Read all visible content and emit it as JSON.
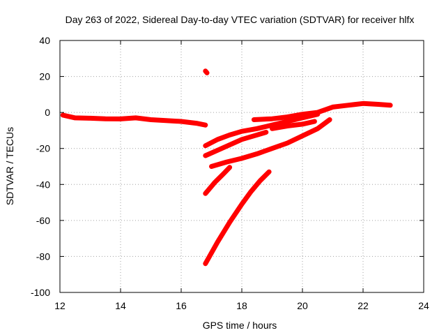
{
  "chart_data": {
    "type": "line",
    "title": "Day 263 of 2022, Sidereal Day-to-day VTEC variation (SDTVAR) for receiver hlfx",
    "xlabel": "GPS time / hours",
    "ylabel": "SDTVAR / TECUs",
    "xlim": [
      12,
      24
    ],
    "ylim": [
      -100,
      40
    ],
    "xticks": [
      12,
      14,
      16,
      18,
      20,
      22,
      24
    ],
    "yticks": [
      -100,
      -80,
      -60,
      -40,
      -20,
      0,
      20,
      40
    ],
    "grid": true,
    "color": "#ff0000",
    "series": [
      {
        "points": [
          [
            12.1,
            -1.5
          ],
          [
            12.5,
            -3
          ],
          [
            13.0,
            -3.2
          ],
          [
            13.5,
            -3.5
          ],
          [
            14.0,
            -3.6
          ],
          [
            14.5,
            -3
          ],
          [
            15.0,
            -4
          ],
          [
            15.5,
            -4.5
          ],
          [
            16.0,
            -5
          ],
          [
            16.5,
            -6
          ],
          [
            16.8,
            -7
          ]
        ]
      },
      {
        "points": [
          [
            16.8,
            23
          ],
          [
            16.85,
            22
          ]
        ]
      },
      {
        "points": [
          [
            16.8,
            -18.5
          ],
          [
            17.2,
            -15
          ],
          [
            17.6,
            -12.5
          ],
          [
            18.0,
            -10.5
          ],
          [
            18.5,
            -9
          ],
          [
            19.0,
            -7
          ],
          [
            19.5,
            -5
          ],
          [
            20.0,
            -3
          ],
          [
            20.5,
            -1
          ]
        ]
      },
      {
        "points": [
          [
            16.8,
            -24
          ],
          [
            17.2,
            -21
          ],
          [
            17.6,
            -18
          ],
          [
            18.0,
            -15
          ],
          [
            18.4,
            -13
          ],
          [
            18.8,
            -11
          ]
        ]
      },
      {
        "points": [
          [
            18.4,
            -4
          ],
          [
            19.0,
            -3.5
          ],
          [
            19.5,
            -2.5
          ],
          [
            20.0,
            -1
          ],
          [
            20.5,
            0
          ],
          [
            21.0,
            3
          ],
          [
            21.5,
            4
          ],
          [
            22.0,
            5
          ],
          [
            22.5,
            4.5
          ],
          [
            22.9,
            4
          ]
        ]
      },
      {
        "points": [
          [
            17.0,
            -30
          ],
          [
            17.5,
            -27.5
          ],
          [
            18.0,
            -25.5
          ],
          [
            18.5,
            -23
          ],
          [
            19.0,
            -20
          ],
          [
            19.5,
            -17
          ],
          [
            20.0,
            -13
          ],
          [
            20.5,
            -9
          ],
          [
            20.9,
            -4
          ]
        ]
      },
      {
        "points": [
          [
            19.0,
            -9
          ],
          [
            19.5,
            -7.5
          ],
          [
            20.0,
            -6.5
          ],
          [
            20.4,
            -5
          ]
        ]
      },
      {
        "points": [
          [
            16.8,
            -45
          ],
          [
            17.1,
            -39
          ],
          [
            17.4,
            -34
          ],
          [
            17.6,
            -30.5
          ]
        ]
      },
      {
        "points": [
          [
            16.8,
            -84
          ],
          [
            17.2,
            -72
          ],
          [
            17.6,
            -61
          ],
          [
            18.0,
            -51
          ],
          [
            18.3,
            -44
          ],
          [
            18.6,
            -38
          ],
          [
            18.9,
            -33
          ]
        ]
      }
    ]
  }
}
